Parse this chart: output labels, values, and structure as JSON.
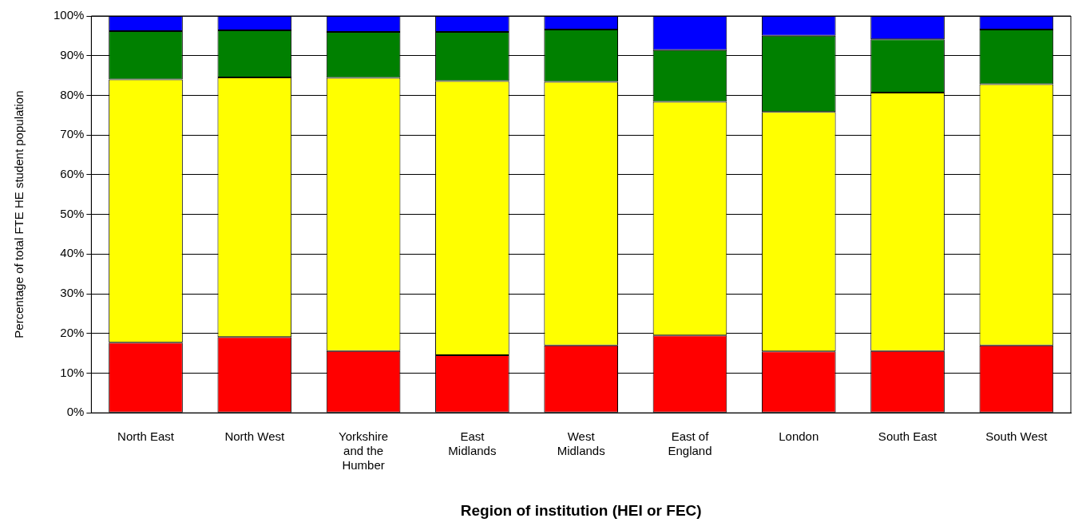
{
  "chart_data": {
    "type": "bar",
    "stacked": true,
    "xlabel": "Region of institution (HEI or FEC)",
    "ylabel": "Percentage of total FTE HE student population",
    "categories": [
      "North East",
      "North West",
      "Yorkshire and the Humber",
      "East Midlands",
      "West Midlands",
      "East of England",
      "London",
      "South East",
      "South West"
    ],
    "series": [
      {
        "color": "#ff0000",
        "values": [
          17.7,
          19.1,
          15.6,
          14.5,
          17.0,
          19.5,
          15.5,
          15.6,
          17.0
        ]
      },
      {
        "color": "#ffff00",
        "values": [
          66.3,
          65.4,
          68.8,
          69.1,
          66.4,
          58.9,
          60.3,
          65.1,
          65.8
        ]
      },
      {
        "color": "#008000",
        "values": [
          12.2,
          11.9,
          11.6,
          12.4,
          13.2,
          13.0,
          19.2,
          13.4,
          13.8
        ]
      },
      {
        "color": "#0000ff",
        "values": [
          3.8,
          3.6,
          4.0,
          4.0,
          3.4,
          8.6,
          5.0,
          5.9,
          3.4
        ]
      }
    ],
    "ylim": [
      0,
      100
    ],
    "yticks": [
      {
        "value": 0,
        "label": "0%"
      },
      {
        "value": 10,
        "label": "10%"
      },
      {
        "value": 20,
        "label": "20%"
      },
      {
        "value": 30,
        "label": "30%"
      },
      {
        "value": 40,
        "label": "40%"
      },
      {
        "value": 50,
        "label": "50%"
      },
      {
        "value": 60,
        "label": "60%"
      },
      {
        "value": 70,
        "label": "70%"
      },
      {
        "value": 80,
        "label": "80%"
      },
      {
        "value": 90,
        "label": "90%"
      },
      {
        "value": 100,
        "label": "100%"
      }
    ],
    "grid": "y"
  }
}
